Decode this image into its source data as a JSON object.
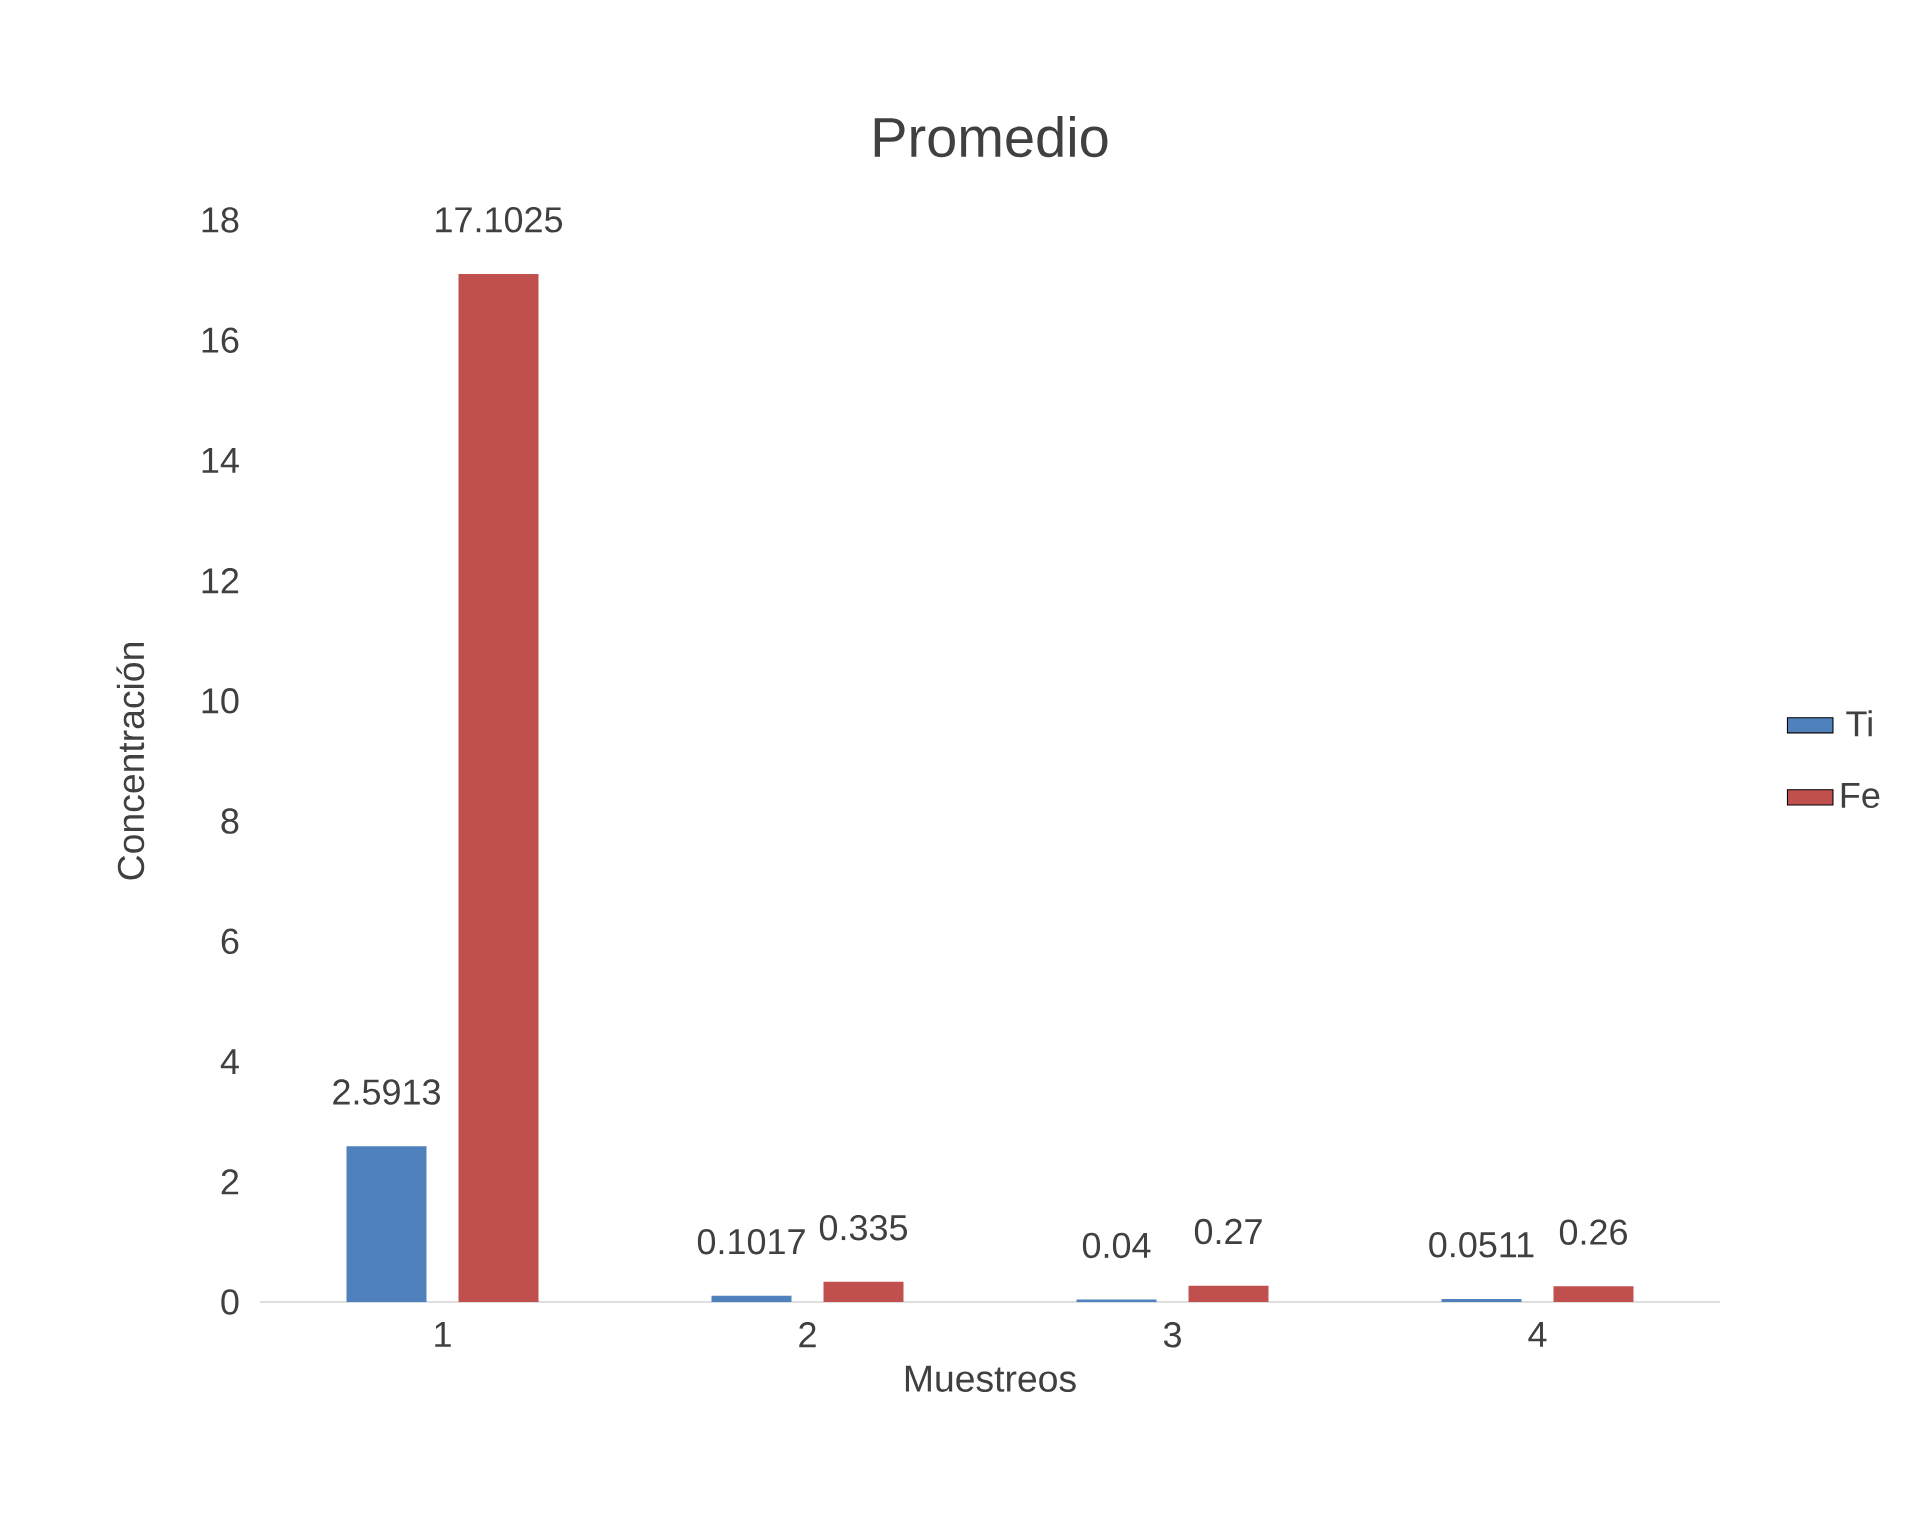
{
  "chart_data": {
    "type": "bar",
    "title": "Promedio",
    "xlabel": "Muestreos",
    "ylabel": "Concentración",
    "categories": [
      "1",
      "2",
      "3",
      "4"
    ],
    "series": [
      {
        "name": "Ti",
        "color": "#4f81bd",
        "values": [
          2.5913,
          0.1017,
          0.04,
          0.0511
        ]
      },
      {
        "name": "Fe",
        "color": "#c0504d",
        "values": [
          17.1025,
          0.335,
          0.27,
          0.26
        ]
      }
    ],
    "ylim": [
      0,
      18
    ],
    "yticks": [
      0,
      2,
      4,
      6,
      8,
      10,
      12,
      14,
      16,
      18
    ],
    "legend": "right",
    "data_labels": true
  }
}
